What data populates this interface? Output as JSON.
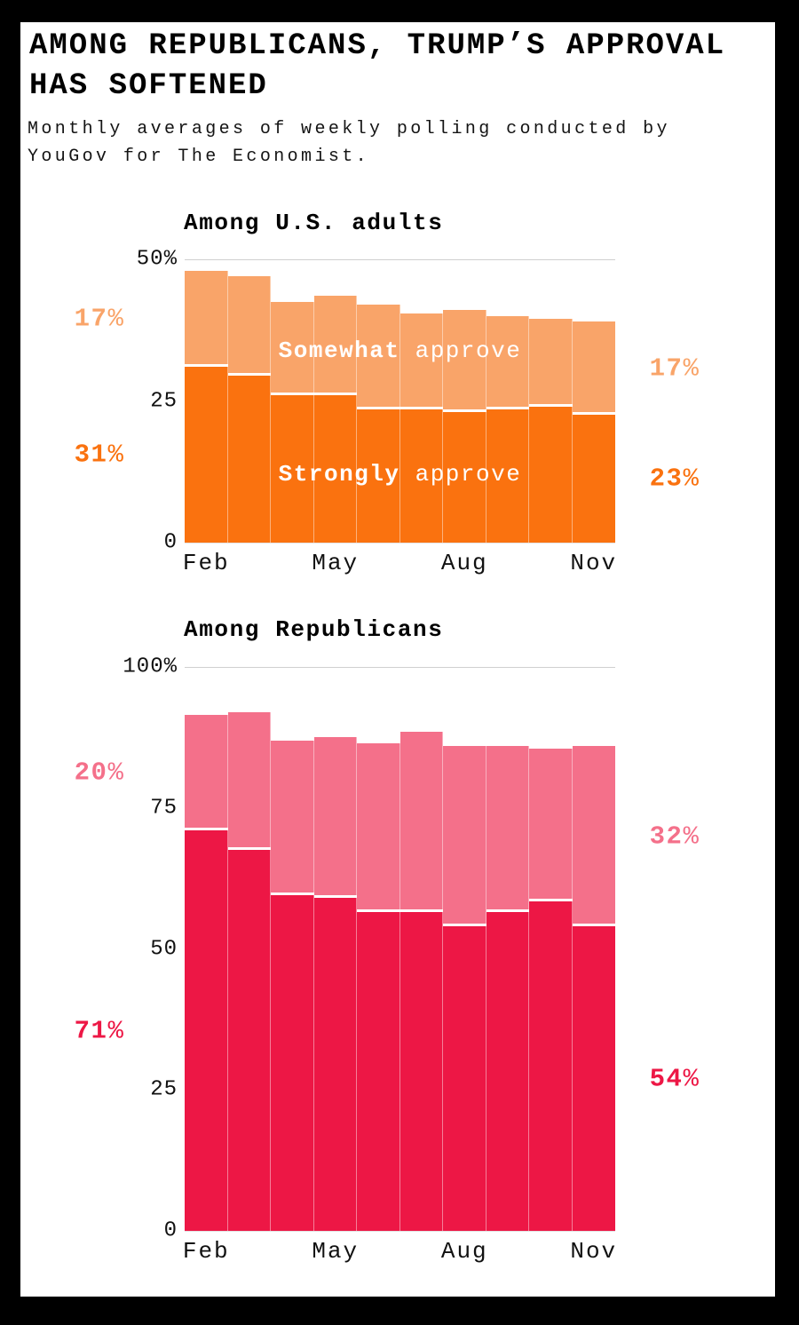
{
  "page": {
    "background": "#000000",
    "card_background": "#ffffff"
  },
  "header": {
    "title_lines": [
      "AMONG REPUBLICANS, TRUMP’S APPROVAL",
      "HAS SOFTENED"
    ],
    "subtitle_lines": [
      "Monthly averages of weekly polling conducted by",
      "YouGov for The Economist."
    ]
  },
  "chart_data": [
    {
      "type": "area",
      "title": "Among U.S. adults",
      "subtype": "stacked-step-monthly-bars",
      "categories": [
        "Feb",
        "Mar",
        "Apr",
        "May",
        "Jun",
        "Jul",
        "Aug",
        "Sep",
        "Oct",
        "Nov"
      ],
      "x_tick_labels": [
        "Feb",
        "May",
        "Aug",
        "Nov"
      ],
      "x_tick_indices": [
        0,
        3,
        6,
        9
      ],
      "ylim": [
        0,
        50
      ],
      "grid": "top-line-only",
      "grid_color": "#d0d0d0",
      "y_ticks": [
        {
          "label": "50%",
          "value": 50
        },
        {
          "label": "25",
          "value": 25
        },
        {
          "label": "0",
          "value": 0
        }
      ],
      "series": [
        {
          "name": "Strongly approve",
          "color": "#fa720f",
          "values": [
            31,
            29.5,
            26,
            26,
            23.5,
            23.5,
            23,
            23.5,
            24,
            22.5
          ]
        },
        {
          "name": "Somewhat approve",
          "color": "#f9a469",
          "values": [
            17,
            17.5,
            16.5,
            17.5,
            18.5,
            17,
            18,
            16.5,
            15.5,
            16.5
          ]
        }
      ],
      "inner_labels": [
        {
          "bold": "Somewhat",
          "regular": "approve",
          "band": "somewhat",
          "top_pct": 32.3
        },
        {
          "bold": "Strongly",
          "regular": "approve",
          "band": "strongly",
          "top_pct": 75.9
        }
      ],
      "annotations": {
        "left": [
          {
            "text": "17%",
            "band": "somewhat"
          },
          {
            "text": "31%",
            "band": "strongly"
          }
        ],
        "right": [
          {
            "text": "17%",
            "band": "somewhat"
          },
          {
            "text": "23%",
            "band": "strongly"
          }
        ]
      }
    },
    {
      "type": "area",
      "title": "Among Republicans",
      "subtype": "stacked-step-monthly-bars",
      "categories": [
        "Feb",
        "Mar",
        "Apr",
        "May",
        "Jun",
        "Jul",
        "Aug",
        "Sep",
        "Oct",
        "Nov"
      ],
      "x_tick_labels": [
        "Feb",
        "May",
        "Aug",
        "Nov"
      ],
      "x_tick_indices": [
        0,
        3,
        6,
        9
      ],
      "ylim": [
        0,
        100
      ],
      "grid": "top-line-only",
      "grid_color": "#d0d0d0",
      "y_ticks": [
        {
          "label": "100%",
          "value": 100
        },
        {
          "label": "75",
          "value": 75
        },
        {
          "label": "50",
          "value": 50
        },
        {
          "label": "25",
          "value": 25
        },
        {
          "label": "0",
          "value": 0
        }
      ],
      "series": [
        {
          "name": "Strongly approve",
          "color": "#ed1745",
          "values": [
            71,
            67.5,
            59.5,
            59,
            56.5,
            56.5,
            54,
            56.5,
            58.5,
            54
          ]
        },
        {
          "name": "Somewhat approve",
          "color": "#f4708a",
          "values": [
            20.5,
            24.5,
            27.5,
            28.5,
            30,
            32,
            32,
            29.5,
            27,
            32
          ]
        }
      ],
      "inner_labels": [],
      "annotations": {
        "left": [
          {
            "text": "20%",
            "band": "somewhat"
          },
          {
            "text": "71%",
            "band": "strongly"
          }
        ],
        "right": [
          {
            "text": "32%",
            "band": "somewhat"
          },
          {
            "text": "54%",
            "band": "strongly"
          }
        ]
      }
    }
  ]
}
